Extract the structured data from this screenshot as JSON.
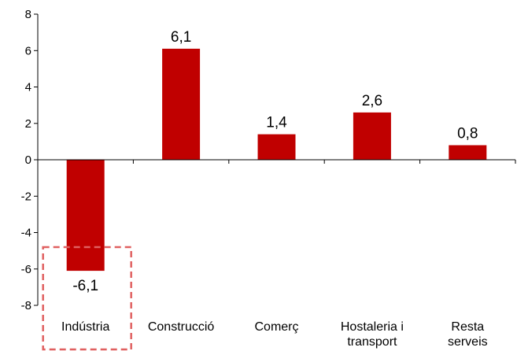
{
  "chart_data": {
    "type": "bar",
    "categories": [
      [
        "Indústria"
      ],
      [
        "Construcció"
      ],
      [
        "Comerç"
      ],
      [
        "Hostaleria i",
        "transport"
      ],
      [
        "Resta",
        "serveis"
      ]
    ],
    "values": [
      -6.1,
      6.1,
      1.4,
      2.6,
      0.8
    ],
    "data_labels": [
      "-6,1",
      "6,1",
      "1,4",
      "2,6",
      "0,8"
    ],
    "ylim": [
      -8,
      8
    ],
    "yticks": [
      8,
      6,
      4,
      2,
      0,
      -2,
      -4,
      -6,
      -8
    ],
    "ytick_labels": [
      "8",
      "6",
      "4",
      "2",
      "0",
      "-2",
      "-4",
      "-6",
      "-8"
    ],
    "grid": false,
    "legend": false,
    "highlight_category_index": 0,
    "colors": {
      "bar": "#c00000",
      "axis": "#000000",
      "highlight_box": "#e06060"
    }
  }
}
